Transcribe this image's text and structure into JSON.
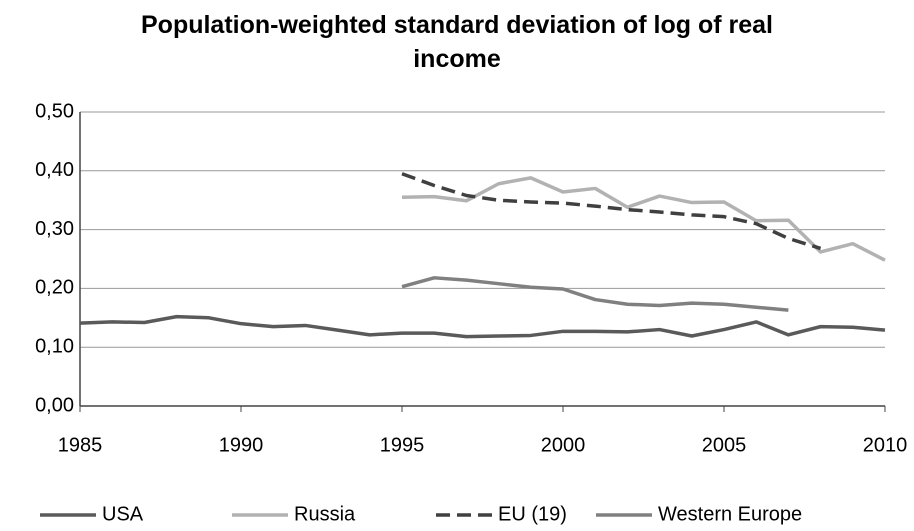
{
  "chart_data": {
    "type": "line",
    "title": "Population-weighted standard deviation of log of real income",
    "xlim": [
      1985,
      2010
    ],
    "xticks": [
      1985,
      1990,
      1995,
      2000,
      2005,
      2010
    ],
    "ylim": [
      0,
      0.5
    ],
    "yticks": [
      {
        "value": 0,
        "label": "0,00"
      },
      {
        "value": 0.1,
        "label": "0,10"
      },
      {
        "value": 0.2,
        "label": "0,20"
      },
      {
        "value": 0.3,
        "label": "0,30"
      },
      {
        "value": 0.4,
        "label": "0,40"
      },
      {
        "value": 0.5,
        "label": "0,50"
      }
    ],
    "grid": true,
    "legend": "bottom",
    "series": [
      {
        "name": "USA",
        "color": "#5a5a5a",
        "dash": "solid",
        "x": [
          1985,
          1986,
          1987,
          1988,
          1989,
          1990,
          1991,
          1992,
          1993,
          1994,
          1995,
          1996,
          1997,
          1998,
          1999,
          2000,
          2001,
          2002,
          2003,
          2004,
          2005,
          2006,
          2007,
          2008,
          2009,
          2010
        ],
        "values": [
          0.141,
          0.143,
          0.142,
          0.152,
          0.15,
          0.14,
          0.135,
          0.137,
          0.129,
          0.121,
          0.124,
          0.124,
          0.118,
          0.119,
          0.12,
          0.127,
          0.127,
          0.126,
          0.13,
          0.119,
          0.13,
          0.143,
          0.121,
          0.135,
          0.134,
          0.129
        ]
      },
      {
        "name": "Russia",
        "color": "#b2b2b2",
        "dash": "solid",
        "x": [
          1995,
          1996,
          1997,
          1998,
          1999,
          2000,
          2001,
          2002,
          2003,
          2004,
          2005,
          2006,
          2007,
          2008,
          2009,
          2010
        ],
        "values": [
          0.355,
          0.356,
          0.349,
          0.378,
          0.388,
          0.364,
          0.37,
          0.338,
          0.357,
          0.346,
          0.347,
          0.315,
          0.316,
          0.262,
          0.276,
          0.248
        ]
      },
      {
        "name": "EU (19)",
        "color": "#404040",
        "dash": "dashed",
        "x": [
          1995,
          1996,
          1997,
          1998,
          1999,
          2000,
          2001,
          2002,
          2003,
          2004,
          2005,
          2006,
          2007,
          2008
        ],
        "values": [
          0.395,
          0.375,
          0.358,
          0.35,
          0.347,
          0.345,
          0.34,
          0.334,
          0.33,
          0.325,
          0.322,
          0.31,
          0.285,
          0.268
        ]
      },
      {
        "name": "Western Europe",
        "color": "#808080",
        "dash": "solid",
        "x": [
          1995,
          1996,
          1997,
          1998,
          1999,
          2000,
          2001,
          2002,
          2003,
          2004,
          2005,
          2006,
          2007
        ],
        "values": [
          0.203,
          0.218,
          0.214,
          0.208,
          0.202,
          0.199,
          0.181,
          0.173,
          0.171,
          0.175,
          0.173,
          0.168,
          0.163
        ]
      }
    ]
  }
}
